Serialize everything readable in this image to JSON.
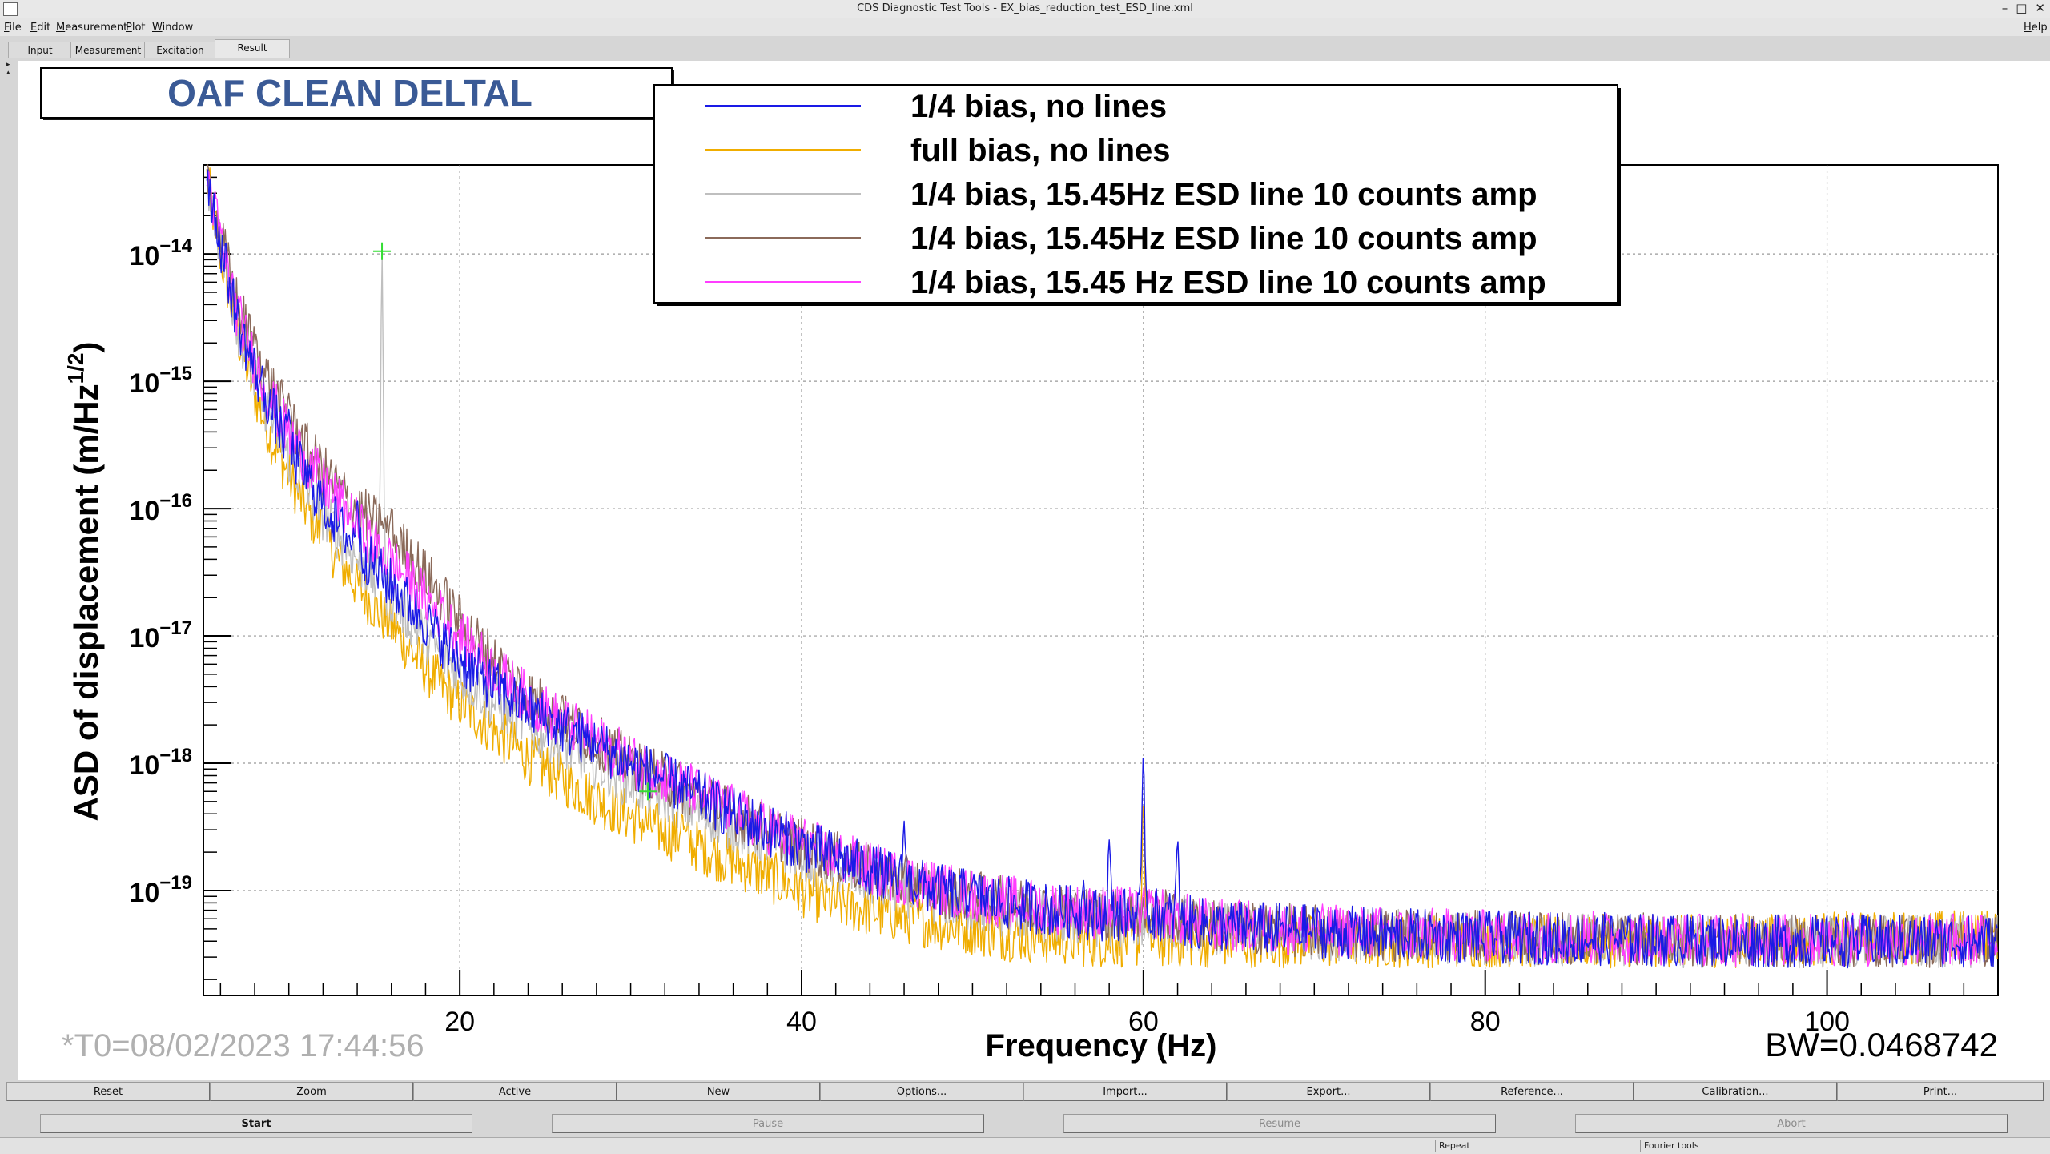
{
  "window": {
    "title": "CDS Diagnostic Test Tools - EX_bias_reduction_test_ESD_line.xml"
  },
  "menu": {
    "items": [
      "File",
      "Edit",
      "Measurement",
      "Plot",
      "Window"
    ],
    "help": "Help"
  },
  "tabs": [
    "Input",
    "Measurement",
    "Excitation",
    "Result"
  ],
  "plot": {
    "header": "OAF CLEAN DELTAL",
    "timestamp": "*T0=08/02/2023 17:44:56",
    "bandwidth": "BW=0.0468742"
  },
  "chart_data": {
    "type": "line",
    "xlabel": "Frequency (Hz)",
    "ylabel": "ASD of displacement (m/Hz^1/2)",
    "ylabel_main": "ASD of displacement (m/Hz",
    "ylabel_sup": "1/2",
    "ylabel_close": ")",
    "xlim": [
      5,
      110
    ],
    "ylim": [
      1.5e-20,
      5e-14
    ],
    "yscale": "log",
    "x_ticks": [
      20,
      40,
      60,
      80,
      100
    ],
    "x_tick_labels": [
      "20",
      "40",
      "60",
      "80",
      "100"
    ],
    "y_ticks": [
      1e-14,
      1e-15,
      1e-16,
      1e-17,
      1e-18,
      1e-19
    ],
    "y_tick_labels": [
      {
        "base": "10",
        "exp": "−14"
      },
      {
        "base": "10",
        "exp": "−15"
      },
      {
        "base": "10",
        "exp": "−16"
      },
      {
        "base": "10",
        "exp": "−17"
      },
      {
        "base": "10",
        "exp": "−18"
      },
      {
        "base": "10",
        "exp": "−19"
      }
    ],
    "grid": true,
    "legend_position": "top-center",
    "series": [
      {
        "name": "1/4 bias, no lines",
        "color": "#1a1ae6",
        "x": [
          5.2,
          6,
          7,
          8,
          9,
          10,
          11,
          12,
          13,
          14,
          15,
          16,
          17,
          18,
          19,
          20,
          22,
          24,
          26,
          28,
          30,
          32,
          34,
          36,
          38,
          40,
          42,
          45,
          48,
          50,
          52,
          55,
          57,
          58,
          59,
          60,
          61,
          62,
          63,
          65,
          70,
          75,
          80,
          85,
          90,
          95,
          100,
          105,
          110
        ],
        "y": [
          4.5e-14,
          1.2e-14,
          3e-15,
          1.2e-15,
          6e-16,
          3e-16,
          1.8e-16,
          1.1e-16,
          7e-17,
          5e-17,
          3.5e-17,
          2.5e-17,
          1.8e-17,
          1.3e-17,
          9e-18,
          6.5e-18,
          4e-18,
          2.7e-18,
          1.9e-18,
          1.4e-18,
          1e-18,
          7.5e-19,
          5.5e-19,
          4e-19,
          3e-19,
          2.3e-19,
          1.8e-19,
          1.3e-19,
          1e-19,
          9e-20,
          8e-20,
          7e-20,
          6.5e-20,
          6.5e-20,
          6.5e-20,
          6.5e-20,
          6.5e-20,
          6e-20,
          5.5e-20,
          5.2e-20,
          4.8e-20,
          4.5e-20,
          4.3e-20,
          4.2e-20,
          4.1e-20,
          4e-20,
          4e-20,
          4e-20,
          4e-20
        ],
        "peaks": [
          [
            10,
            6e-16
          ],
          [
            14,
            1.2e-16
          ],
          [
            28,
            1.2e-18
          ],
          [
            33,
            5e-19
          ],
          [
            36,
            4e-19
          ],
          [
            46,
            3.5e-19
          ],
          [
            50,
            1.2e-19
          ],
          [
            56.5,
            1.2e-19
          ],
          [
            58,
            2.5e-19
          ],
          [
            60,
            1.2e-18
          ],
          [
            62,
            2.5e-19
          ]
        ]
      },
      {
        "name": "full bias, no lines",
        "color": "#f0ad00",
        "x": [
          5.2,
          6,
          7,
          8,
          9,
          10,
          11,
          12,
          13,
          14,
          15,
          16,
          17,
          18,
          19,
          20,
          22,
          24,
          26,
          28,
          30,
          32,
          34,
          36,
          38,
          40,
          42,
          45,
          48,
          50,
          52,
          55,
          57,
          58,
          59,
          60,
          61,
          62,
          63,
          65,
          70,
          75,
          80,
          85,
          90,
          95,
          100,
          105,
          110
        ],
        "y": [
          4e-14,
          1e-14,
          2.3e-15,
          8e-16,
          3.5e-16,
          1.8e-16,
          1e-16,
          6e-17,
          3.8e-17,
          2.5e-17,
          1.7e-17,
          1.2e-17,
          8e-18,
          5.5e-18,
          4e-18,
          3e-18,
          1.8e-18,
          1.1e-18,
          7.5e-19,
          5.2e-19,
          3.8e-19,
          2.9e-19,
          2.2e-19,
          1.7e-19,
          1.3e-19,
          1e-19,
          8e-20,
          6.5e-20,
          5.5e-20,
          5e-20,
          4.5e-20,
          4.2e-20,
          4e-20,
          4e-20,
          4e-20,
          4e-20,
          4e-20,
          4e-20,
          4e-20,
          4e-20,
          4e-20,
          4e-20,
          4e-20,
          4e-20,
          4e-20,
          4e-20,
          4.2e-20,
          4.3e-20,
          4.5e-20
        ],
        "peaks": [
          [
            12,
            1.5e-16
          ],
          [
            33,
            4e-19
          ],
          [
            60,
            5e-19
          ]
        ]
      },
      {
        "name": "1/4 bias, 15.45Hz ESD line 10 counts amp",
        "color": "#bfbfbf",
        "x": [
          5.2,
          6,
          7,
          8,
          9,
          10,
          11,
          12,
          13,
          14,
          15,
          16,
          17,
          18,
          19,
          20,
          22,
          24,
          26,
          28,
          30,
          32,
          34,
          36,
          38,
          40,
          42,
          45,
          48,
          50,
          52,
          55,
          57,
          58,
          59,
          60,
          61,
          62,
          63,
          65,
          70,
          75,
          80,
          85,
          90,
          95,
          100,
          105,
          110
        ],
        "y": [
          4.2e-14,
          1.1e-14,
          2.7e-15,
          1e-15,
          5e-16,
          2.5e-16,
          1.5e-16,
          9e-17,
          6e-17,
          4e-17,
          2.8e-17,
          2e-17,
          1.4e-17,
          1e-17,
          7e-18,
          5e-18,
          3e-18,
          2e-18,
          1.4e-18,
          1e-18,
          7e-19,
          5.5e-19,
          4.2e-19,
          3.2e-19,
          2.5e-19,
          1.9e-19,
          1.5e-19,
          1.1e-19,
          8.5e-20,
          7.5e-20,
          6.8e-20,
          6e-20,
          5.8e-20,
          5.8e-20,
          5.8e-20,
          5.8e-20,
          5.8e-20,
          5.6e-20,
          5.3e-20,
          5e-20,
          4.6e-20,
          4.4e-20,
          4.2e-20,
          4.1e-20,
          4e-20,
          4e-20,
          4e-20,
          4e-20,
          4e-20
        ],
        "peaks": [
          [
            15.45,
            1e-14
          ],
          [
            30.9,
            4e-19
          ]
        ]
      },
      {
        "name": "1/4 bias, 15.45Hz ESD line 10 counts amp",
        "color": "#8b6a5a",
        "x": [
          5.2,
          6,
          7,
          8,
          9,
          10,
          11,
          12,
          13,
          14,
          15,
          16,
          17,
          18,
          19,
          20,
          22,
          24,
          26,
          28,
          30,
          32,
          34,
          36,
          38,
          40,
          42,
          45,
          48,
          50,
          52,
          55,
          57,
          58,
          59,
          60,
          61,
          62,
          63,
          65,
          70,
          75,
          80,
          85,
          90,
          95,
          100,
          105,
          110
        ],
        "y": [
          4.6e-14,
          1.4e-14,
          4e-15,
          1.8e-15,
          9e-16,
          5e-16,
          3e-16,
          2e-16,
          1.4e-16,
          1e-16,
          8e-17,
          6e-17,
          4.5e-17,
          3e-17,
          2e-17,
          1.3e-17,
          6.5e-18,
          3.5e-18,
          2.2e-18,
          1.5e-18,
          1e-18,
          7.5e-19,
          5.5e-19,
          4e-19,
          3e-19,
          2.3e-19,
          1.8e-19,
          1.3e-19,
          1e-19,
          9e-20,
          8e-20,
          7e-20,
          6.5e-20,
          6.5e-20,
          6.5e-20,
          6.5e-20,
          6.5e-20,
          6e-20,
          5.5e-20,
          5.2e-20,
          4.8e-20,
          4.5e-20,
          4.3e-20,
          4.2e-20,
          4.1e-20,
          4e-20,
          4e-20,
          4e-20,
          4e-20
        ],
        "peaks": [
          [
            8,
            2e-15
          ],
          [
            10,
            8e-16
          ],
          [
            15.45,
            8e-17
          ],
          [
            16,
            1e-16
          ],
          [
            26,
            3.5e-18
          ],
          [
            27,
            2.5e-18
          ]
        ]
      },
      {
        "name": "1/4 bias, 15.45 Hz ESD line 10 counts amp",
        "color": "#ff3dff",
        "x": [
          5.2,
          6,
          7,
          8,
          9,
          10,
          11,
          12,
          13,
          14,
          15,
          16,
          17,
          18,
          19,
          20,
          22,
          24,
          26,
          28,
          30,
          32,
          34,
          36,
          38,
          40,
          42,
          45,
          48,
          50,
          52,
          55,
          57,
          58,
          59,
          60,
          61,
          62,
          63,
          65,
          70,
          75,
          80,
          85,
          90,
          95,
          100,
          105,
          110
        ],
        "y": [
          4.4e-14,
          1.3e-14,
          3.4e-15,
          1.4e-15,
          7e-16,
          3.8e-16,
          2.4e-16,
          1.6e-16,
          1.1e-16,
          7.5e-17,
          5.2e-17,
          3.8e-17,
          2.8e-17,
          2e-17,
          1.4e-17,
          1e-17,
          5.5e-18,
          3.2e-18,
          2.1e-18,
          1.5e-18,
          1.05e-18,
          7.8e-19,
          5.8e-19,
          4.2e-19,
          3.1e-19,
          2.4e-19,
          1.85e-19,
          1.35e-19,
          1.05e-19,
          9.2e-20,
          8.2e-20,
          7.2e-20,
          6.7e-20,
          6.7e-20,
          6.7e-20,
          6.7e-20,
          6.7e-20,
          6.2e-20,
          5.6e-20,
          5.3e-20,
          4.9e-20,
          4.6e-20,
          4.4e-20,
          4.3e-20,
          4.2e-20,
          4.1e-20,
          4.1e-20,
          4.1e-20,
          4.1e-20
        ],
        "peaks": [
          [
            19,
            2e-17
          ],
          [
            36,
            5e-19
          ]
        ]
      }
    ],
    "markers": [
      {
        "x": 15.45,
        "y": 1.05e-14,
        "color": "#33dd33"
      },
      {
        "x": 31,
        "y": 6e-19,
        "color": "#33dd33"
      }
    ]
  },
  "toolbar": {
    "buttons": [
      "Reset",
      "Zoom",
      "Active",
      "New",
      "Options...",
      "Import...",
      "Export...",
      "Reference...",
      "Calibration...",
      "Print..."
    ]
  },
  "controls": {
    "buttons": [
      "Start",
      "Pause",
      "Resume",
      "Abort"
    ]
  },
  "statusbar": {
    "cells": [
      "Repeat",
      "Fourier tools"
    ]
  }
}
